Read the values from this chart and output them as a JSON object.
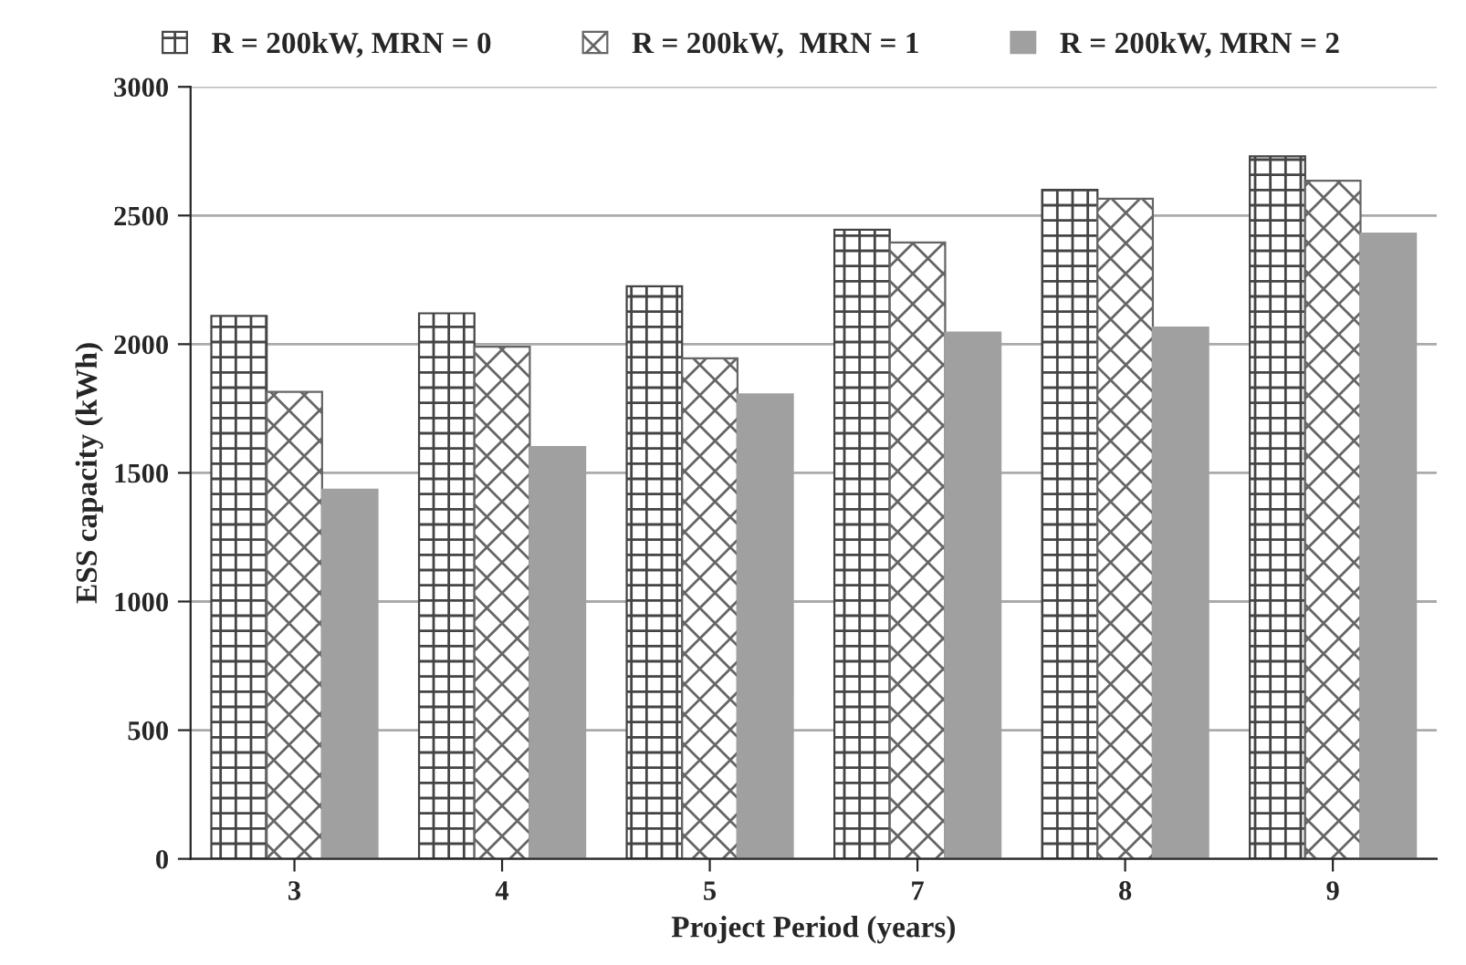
{
  "chart_data": {
    "type": "bar",
    "xlabel": "Project Period (years)",
    "ylabel": "ESS capacity (kWh)",
    "categories": [
      "3",
      "4",
      "5",
      "7",
      "8",
      "9"
    ],
    "series": [
      {
        "name": "R = 200kW, MRN = 0",
        "color": "#444444",
        "values": [
          2110,
          2120,
          2225,
          2445,
          2600,
          2730
        ]
      },
      {
        "name": "R = 200kW,  MRN = 1",
        "color": "#666666",
        "values": [
          1815,
          1990,
          1945,
          2395,
          2565,
          2635
        ]
      },
      {
        "name": "R = 200kW, MRN = 2",
        "color": "#a0a0a0",
        "values": [
          1435,
          1600,
          1805,
          2045,
          2065,
          2430
        ]
      }
    ],
    "ylim": [
      0,
      3000
    ],
    "yticks": [
      0,
      500,
      1000,
      1500,
      2000,
      2500,
      3000
    ],
    "grid": "y",
    "legend": "top"
  }
}
